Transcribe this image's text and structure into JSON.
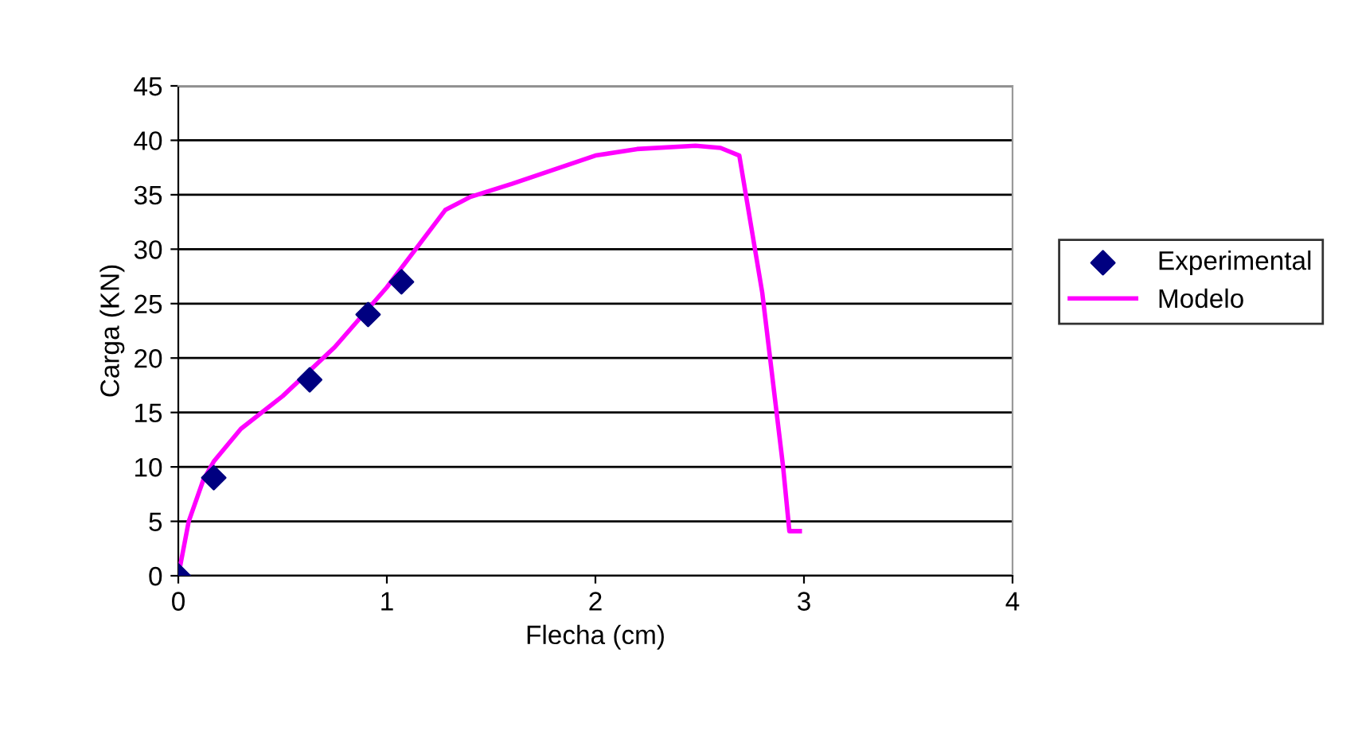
{
  "chart_data": {
    "type": "line",
    "xlabel": "Flecha (cm)",
    "ylabel": "Carga (KN)",
    "xlim": [
      0,
      4
    ],
    "xticks": [
      0,
      1,
      2,
      3,
      4
    ],
    "ylim": [
      0,
      45
    ],
    "yticks": [
      0,
      5,
      10,
      15,
      20,
      25,
      30,
      35,
      40,
      45
    ],
    "grid": "y",
    "legend": "right",
    "series": [
      {
        "name": "Experimental",
        "type": "scatter",
        "marker": "diamond",
        "color": "#000080",
        "x": [
          0,
          0.17,
          0.63,
          0.91,
          1.07
        ],
        "values": [
          0,
          9,
          18,
          24,
          27
        ]
      },
      {
        "name": "Modelo",
        "marker": "none",
        "line_style": "solid",
        "color": "#ff00ff",
        "x": [
          0,
          0.05,
          0.12,
          0.17,
          0.3,
          0.5,
          0.75,
          1.0,
          1.28,
          1.4,
          1.6,
          1.8,
          2.0,
          2.2,
          2.48,
          2.6,
          2.69,
          2.8,
          2.9,
          2.93,
          2.98
        ],
        "values": [
          0,
          5,
          8.8,
          10.5,
          13.5,
          16.5,
          21,
          26.5,
          33.6,
          34.8,
          36,
          37.3,
          38.6,
          39.2,
          39.5,
          39.3,
          38.6,
          26,
          10,
          4.1,
          4.1
        ]
      }
    ]
  }
}
